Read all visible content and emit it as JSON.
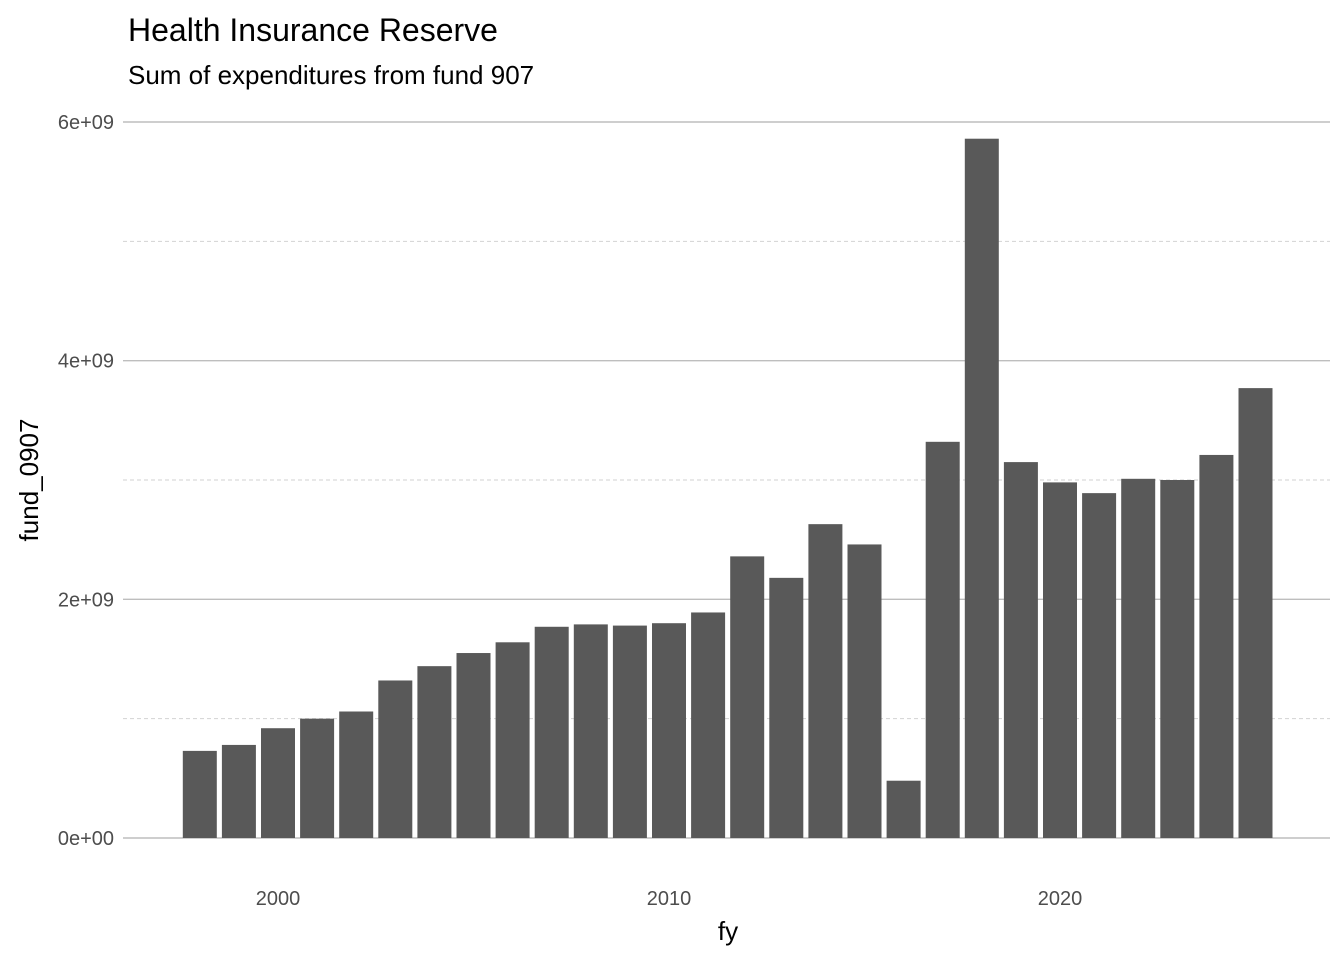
{
  "chart_data": {
    "type": "bar",
    "title": "Health Insurance Reserve",
    "subtitle": "Sum of expenditures from fund 907",
    "xlabel": "fy",
    "ylabel": "fund_0907",
    "x": [
      1998,
      1999,
      2000,
      2001,
      2002,
      2003,
      2004,
      2005,
      2006,
      2007,
      2008,
      2009,
      2010,
      2011,
      2012,
      2013,
      2014,
      2015,
      2016,
      2017,
      2018,
      2019,
      2020,
      2021,
      2022,
      2023,
      2024,
      2025
    ],
    "values": [
      730000000,
      780000000,
      920000000,
      1000000000,
      1060000000,
      1320000000,
      1440000000,
      1550000000,
      1640000000,
      1770000000,
      1790000000,
      1780000000,
      1800000000,
      1890000000,
      2360000000,
      2180000000,
      2630000000,
      2460000000,
      480000000,
      3320000000,
      5860000000,
      3150000000,
      2980000000,
      2890000000,
      3010000000,
      3000000000,
      3210000000,
      3770000000
    ],
    "xlim": [
      1996.2,
      2026.8
    ],
    "ylim": [
      0,
      6000000000
    ],
    "x_ticks": [
      2000,
      2010,
      2020
    ],
    "x_tick_labels": [
      "2000",
      "2010",
      "2020"
    ],
    "y_ticks": [
      0,
      2000000000,
      4000000000,
      6000000000
    ],
    "y_tick_labels": [
      "0e+00",
      "2e+09",
      "4e+09",
      "6e+09"
    ],
    "y_minor_ticks": [
      1000000000,
      3000000000,
      5000000000
    ],
    "grid": true,
    "legend": "none",
    "colors": {
      "bar": "#595959",
      "grid_major": "#bebebe",
      "grid_minor": "#d2d2d2",
      "tick_text": "#4d4d4d",
      "text": "#000000"
    }
  }
}
